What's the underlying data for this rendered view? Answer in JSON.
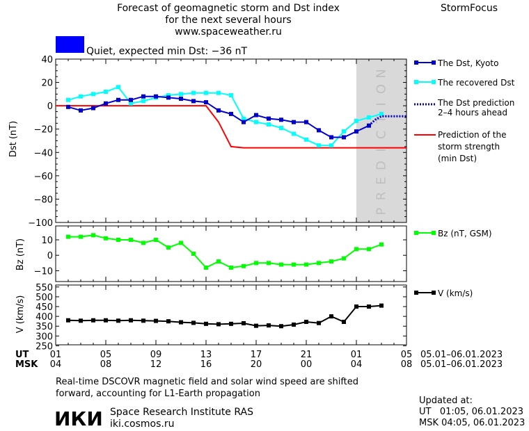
{
  "header": {
    "title_lines": [
      "Forecast of geomagnetic storm and Dst index",
      "for the next several hours",
      "www.spaceweather.ru"
    ],
    "brand": "StormFocus",
    "status_text": "Quiet, expected min Dst: −36 nT",
    "status_color": "#0000ff"
  },
  "panels": {
    "dst": {
      "ylabel": "Dst (nT)",
      "ylim": [
        -100,
        40
      ],
      "ticks": [
        40,
        20,
        0,
        -20,
        -40,
        -60,
        -80,
        -100
      ]
    },
    "bz": {
      "ylabel": "Bz (nT)",
      "ylim": [
        -17,
        19
      ],
      "ticks": [
        10,
        0,
        -10
      ]
    },
    "v": {
      "ylabel": "V (km/s)",
      "ylim": [
        255,
        560
      ],
      "ticks": [
        550,
        500,
        450,
        400,
        350,
        300,
        250
      ]
    }
  },
  "prediction_band_label": "PREDICTION",
  "legend": {
    "dst_kyoto": "The Dst, Kyoto",
    "recovered": "The recovered Dst",
    "prediction_lines": [
      "The Dst prediction",
      "2–4 hours ahead"
    ],
    "strength_lines": [
      "Prediction of the",
      "storm strength",
      "(min Dst)"
    ],
    "bz": "Bz (nT, GSM)",
    "v": "V (km/s)"
  },
  "time_axis": {
    "ut_label": "UT",
    "msk_label": "MSK",
    "ut_ticks": [
      "01",
      "05",
      "09",
      "13",
      "17",
      "21",
      "01",
      "05"
    ],
    "msk_ticks": [
      "04",
      "08",
      "12",
      "16",
      "20",
      "00",
      "04",
      "08"
    ],
    "ut_date_range": "05.01–06.01.2023",
    "msk_date_range": "05.01–06.01.2023"
  },
  "footer": {
    "note_lines": [
      "Real-time DSCOVR magnetic field and solar wind speed are shifted",
      "forward, accounting for L1-Earth propagation"
    ],
    "institute_logo": "ИКИ",
    "institute_name": "Space Research Institute RAS",
    "institute_url": "iki.cosmos.ru",
    "updated_label": "Updated at:",
    "updated_ut": "UT   01:05, 06.01.2023",
    "updated_msk": "MSK 04:05, 06.01.2023"
  },
  "colors": {
    "dst": "#0000cc",
    "recovered": "#00ffff",
    "prediction": "#0000cc",
    "strength": "#ff0000",
    "bz": "#00ff00",
    "v": "#000000",
    "band": "#d9d9d9"
  },
  "chart_data": {
    "type": "line",
    "x_unit": "hours after 01 UT, 05.01.2023",
    "xlim": [
      0,
      28
    ],
    "dst_kyoto": {
      "x": [
        1,
        2,
        3,
        4,
        5,
        6,
        7,
        8,
        9,
        10,
        11,
        12,
        13,
        14,
        15,
        16,
        17,
        18,
        19,
        20,
        21,
        22,
        23,
        24,
        25
      ],
      "y": [
        -1,
        -4,
        -2,
        2,
        5,
        5,
        8,
        8,
        7,
        6,
        4,
        3,
        -4,
        -7,
        -14,
        -8,
        -11,
        -12,
        -14,
        -14,
        -21,
        -27,
        -27,
        -22,
        -17
      ]
    },
    "recovered_dst": {
      "x": [
        1,
        2,
        3,
        4,
        5,
        6,
        7,
        8,
        9,
        10,
        11,
        12,
        13,
        14,
        15,
        16,
        17,
        18,
        19,
        20,
        21,
        22,
        23,
        24,
        25,
        26
      ],
      "y": [
        5,
        8,
        10,
        12,
        16,
        2,
        4,
        7,
        9,
        10,
        11,
        11,
        11,
        9,
        -11,
        -14,
        -16,
        -19,
        -24,
        -29,
        -34,
        -34,
        -22,
        -13,
        -10,
        -7
      ]
    },
    "dst_prediction": {
      "x": [
        25,
        25.5,
        26,
        27,
        28
      ],
      "y": [
        -17,
        -12,
        -9,
        -9,
        -9
      ]
    },
    "storm_strength": {
      "x": [
        0,
        12,
        13,
        14,
        15,
        28
      ],
      "y": [
        0,
        0,
        -14,
        -35,
        -36,
        -36
      ]
    },
    "bz": {
      "x": [
        1,
        2,
        3,
        4,
        5,
        6,
        7,
        8,
        9,
        10,
        11,
        12,
        13,
        14,
        15,
        16,
        17,
        18,
        19,
        20,
        21,
        22,
        23,
        24,
        25,
        26
      ],
      "y": [
        12,
        12,
        13,
        11,
        10,
        10,
        8,
        10,
        5,
        8,
        1,
        -8,
        -4,
        -8,
        -7,
        -5,
        -5,
        -6,
        -6,
        -6,
        -5,
        -4,
        -2,
        4,
        4,
        7
      ]
    },
    "v": {
      "x": [
        1,
        2,
        3,
        4,
        5,
        6,
        7,
        8,
        9,
        10,
        11,
        12,
        13,
        14,
        15,
        16,
        17,
        18,
        19,
        20,
        21,
        22,
        23,
        24,
        25,
        26
      ],
      "y": [
        380,
        378,
        380,
        380,
        378,
        380,
        378,
        377,
        375,
        370,
        367,
        362,
        360,
        362,
        365,
        352,
        354,
        350,
        358,
        372,
        366,
        400,
        372,
        450,
        450,
        455
      ]
    }
  }
}
